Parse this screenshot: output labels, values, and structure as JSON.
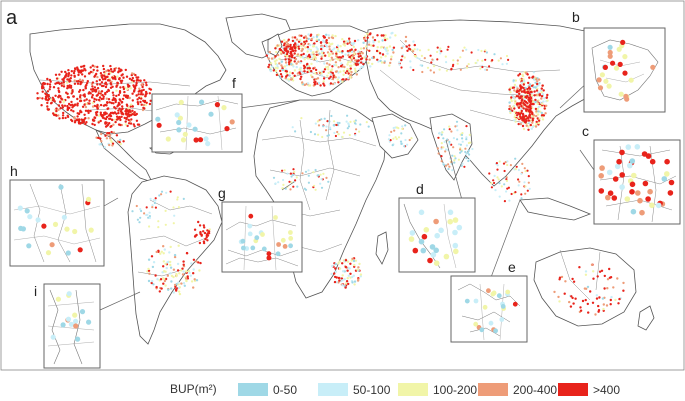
{
  "figure": {
    "panel_label": "a",
    "inset_labels": [
      "b",
      "c",
      "d",
      "e",
      "f",
      "g",
      "h",
      "i"
    ]
  },
  "legend": {
    "title": "BUP(m²)",
    "classes": [
      {
        "label": "0-50",
        "color": "#9fd8e6"
      },
      {
        "label": "50-100",
        "color": "#c8eef8"
      },
      {
        "label": "100-200",
        "color": "#f1f5a8"
      },
      {
        "label": "200-400",
        "color": "#ee9c78"
      },
      {
        "label": ">400",
        "color": "#e8231b"
      }
    ]
  },
  "colors": {
    "border": "#6e6e6e",
    "coast": "#555555",
    "inset_frame": "#666666"
  }
}
